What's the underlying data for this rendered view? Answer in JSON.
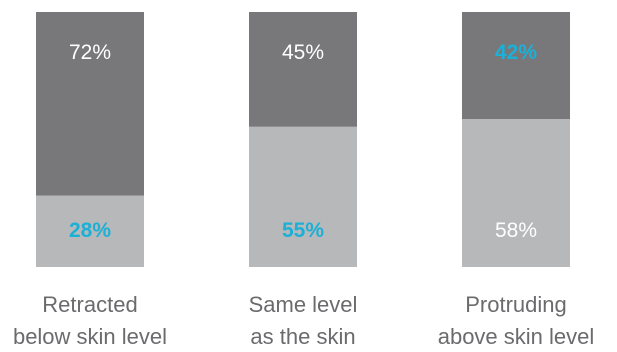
{
  "chart_data": {
    "type": "bar",
    "stacked": true,
    "value_unit": "%",
    "ylim": [
      0,
      100
    ],
    "grid": false,
    "legend": "none",
    "categories": [
      [
        "Retracted",
        "below skin level"
      ],
      [
        "Same level",
        "as the skin"
      ],
      [
        "Protruding",
        "above skin level"
      ]
    ],
    "series": [
      {
        "values": [
          28,
          55,
          58
        ],
        "labels": [
          "28%",
          "55%",
          "58%"
        ],
        "color": "#b7b8ba",
        "label_colors": [
          "#1cb0d6",
          "#1cb0d6",
          "#ffffff"
        ],
        "label_bold": [
          true,
          true,
          false
        ]
      },
      {
        "values": [
          72,
          45,
          42
        ],
        "labels": [
          "72%",
          "45%",
          "42%"
        ],
        "color": "#78787b",
        "label_colors": [
          "#ffffff",
          "#ffffff",
          "#1cb0d6"
        ],
        "label_bold": [
          false,
          false,
          true
        ]
      }
    ]
  }
}
